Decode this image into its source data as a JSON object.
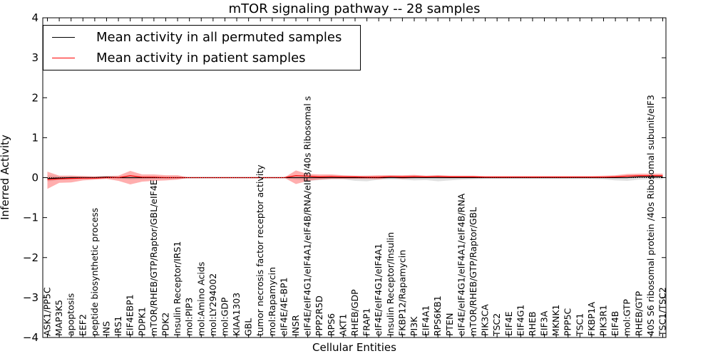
{
  "chart_data": {
    "type": "line",
    "title": "mTOR signaling pathway -- 28 samples",
    "xlabel": "Cellular Entities",
    "ylabel": "Inferred Activity",
    "ylim": [
      -4,
      4
    ],
    "yticks": [
      "4",
      "3",
      "2",
      "1",
      "0",
      "−1",
      "−2",
      "−3",
      "−4"
    ],
    "grid": false,
    "legend_position": "top-left",
    "categories": [
      "ASK1/PP5C",
      "MAP3K5",
      "apoptosis",
      "EEF2",
      "peptide biosynthetic process",
      "INS",
      "IRS1",
      "EIF4EBP1",
      "PDPK1",
      "mTOR/RHEB/GTP/Raptor/GBL/eIF4E",
      "PDK2",
      "Insulin Receptor/IRS1",
      "mol:PIP3",
      "mol:Amino Acids",
      "mol:LY294002",
      "mol:GDP",
      "KIAA1303",
      "GBL",
      "tumor necrosis factor receptor activity",
      "mol:Rapamycin",
      "eIF4E/4E-BP1",
      "INSR",
      "eIF4E/eIF4G1/eIF4A1/eIF4B/RNA/eIF3/40s Ribosomal s",
      "PPP2R5D",
      "RPS6",
      "AKT1",
      "RHEB/GDP",
      "FRAP1",
      "eIF4E/eIF4G1/eIF4A1",
      "Insulin Receptor/Insulin",
      "FKBP12/Rapamycin",
      "PI3K",
      "EIF4A1",
      "RPS6KB1",
      "PTEN",
      "eIF4E/eIF4G1/eIF4A1/eIF4B/RNA",
      "mTOR/RHEB/GTP/Raptor/GBL",
      "PIK3CA",
      "TSC2",
      "EIF4E",
      "EIF4G1",
      "RHEB",
      "EIF3A",
      "MKNK1",
      "PPP5C",
      "TSC1",
      "FKBP1A",
      "PIK3R1",
      "EIF4B",
      "mol:GTP",
      "RHEB/GTP",
      "40S S6 ribosomal protein /40s Ribosomal subunit/eIF3",
      "TSC1/TSC2"
    ],
    "series": [
      {
        "name": "Mean activity in all permuted samples",
        "color": "#000000",
        "values": [
          -0.02,
          -0.01,
          0,
          0,
          0,
          0.01,
          0,
          0,
          0,
          0,
          0,
          0,
          0,
          0,
          0,
          0,
          0,
          0,
          0,
          0,
          0,
          0,
          0,
          0,
          0,
          0,
          0,
          0,
          0,
          0,
          0,
          0,
          0,
          0,
          0,
          0,
          0,
          0,
          0,
          0,
          0,
          0,
          0,
          0,
          0,
          0,
          0,
          0,
          0,
          0,
          0.02,
          0.02,
          0.02
        ],
        "band_low": [
          -0.1,
          -0.06,
          -0.05,
          -0.04,
          -0.03,
          -0.02,
          -0.02,
          -0.05,
          -0.04,
          -0.03,
          -0.02,
          -0.02,
          0,
          0,
          0,
          0,
          0,
          0,
          0,
          0,
          0,
          -0.05,
          -0.08,
          -0.06,
          -0.04,
          -0.04,
          -0.08,
          -0.09,
          -0.05,
          -0.04,
          -0.05,
          -0.07,
          -0.06,
          -0.09,
          -0.07,
          -0.05,
          -0.04,
          -0.03,
          -0.03,
          -0.03,
          -0.03,
          -0.03,
          -0.03,
          -0.03,
          -0.03,
          -0.03,
          -0.03,
          -0.04,
          -0.07,
          -0.08,
          -0.05,
          -0.04,
          -0.04
        ],
        "band_high": [
          0.06,
          0.04,
          0.05,
          0.04,
          0.03,
          0.04,
          0.03,
          0.04,
          0.03,
          0.03,
          0.02,
          0.02,
          0,
          0,
          0,
          0,
          0,
          0,
          0,
          0,
          0,
          0.04,
          0.05,
          0.04,
          0.04,
          0.03,
          0.04,
          0.05,
          0.04,
          0.04,
          0.04,
          0.05,
          0.04,
          0.05,
          0.04,
          0.03,
          0.03,
          0.03,
          0.03,
          0.03,
          0.03,
          0.03,
          0.03,
          0.03,
          0.03,
          0.03,
          0.03,
          0.03,
          0.04,
          0.05,
          0.06,
          0.06,
          0.06
        ]
      },
      {
        "name": "Mean activity in patient samples",
        "color": "#ff0000",
        "values": [
          -0.05,
          -0.03,
          -0.02,
          -0.01,
          -0.01,
          0,
          0,
          0.05,
          0.01,
          0.01,
          0,
          0,
          0,
          0,
          0,
          0,
          0,
          0,
          0,
          0,
          0,
          0.05,
          0.04,
          0.02,
          0.03,
          0.02,
          0.02,
          0.01,
          0.01,
          0.03,
          0.02,
          0.03,
          0.02,
          0.03,
          0.02,
          0.02,
          0.02,
          0.01,
          0.01,
          0.01,
          0.01,
          0.01,
          0.01,
          0.01,
          0.01,
          0.01,
          0.01,
          0.01,
          0.02,
          0.04,
          0.05,
          0.05,
          0.05
        ],
        "band_low": [
          -0.28,
          -0.13,
          -0.12,
          -0.07,
          -0.05,
          -0.03,
          -0.08,
          -0.17,
          -0.1,
          -0.08,
          -0.07,
          -0.05,
          0,
          0,
          0,
          0,
          0,
          0,
          0,
          0,
          0,
          -0.16,
          -0.08,
          -0.05,
          -0.03,
          -0.03,
          -0.03,
          -0.03,
          -0.04,
          0,
          -0.03,
          -0.01,
          0,
          -0.01,
          -0.01,
          0,
          0,
          0,
          0,
          0,
          0,
          0,
          0,
          0,
          0,
          0,
          0,
          0,
          0,
          0,
          0.01,
          0.01,
          0.01
        ],
        "band_high": [
          0.15,
          0.05,
          0.05,
          0.04,
          0.03,
          0.04,
          0.05,
          0.17,
          0.08,
          0.08,
          0.06,
          0.06,
          0,
          0,
          0,
          0,
          0,
          0,
          0,
          0,
          0,
          0.18,
          0.09,
          0.08,
          0.08,
          0.06,
          0.05,
          0.05,
          0.06,
          0.06,
          0.06,
          0.07,
          0.05,
          0.06,
          0.05,
          0.05,
          0.05,
          0.04,
          0.04,
          0.04,
          0.04,
          0.04,
          0.04,
          0.04,
          0.04,
          0.04,
          0.04,
          0.05,
          0.06,
          0.09,
          0.1,
          0.1,
          0.1
        ]
      }
    ]
  }
}
